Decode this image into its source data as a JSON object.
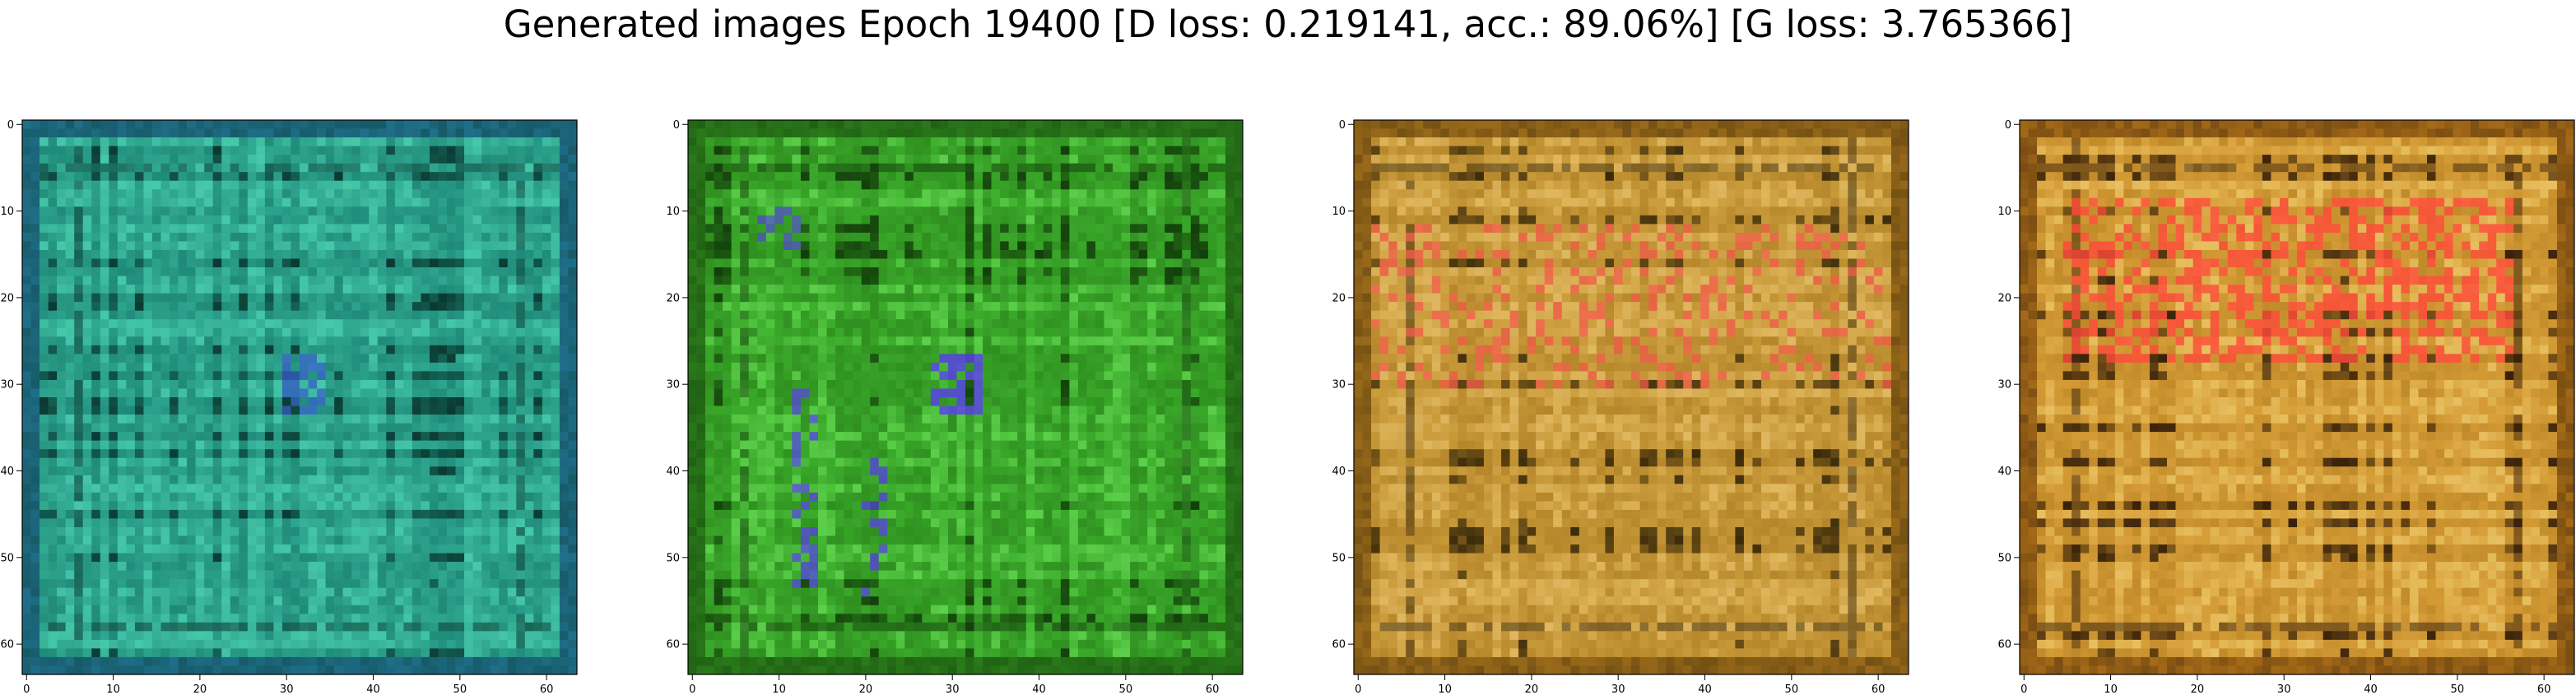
{
  "figure": {
    "title": "Generated images Epoch 19400 [D loss: 0.219141, acc.: 89.06%] [G loss: 3.765366]"
  },
  "panels": [
    {
      "palette": {
        "base": "#1f8a78",
        "mid": "#2fa68f",
        "light": "#46c8ab",
        "dark": "#0a3a32",
        "accent": "#3a5fd0",
        "edge": "#1f6f8a"
      }
    },
    {
      "palette": {
        "base": "#2f8f1f",
        "mid": "#3aa82a",
        "light": "#5cd04a",
        "dark": "#123f0a",
        "accent": "#5a3cf0",
        "edge": "#2a7a1a"
      }
    },
    {
      "palette": {
        "base": "#b5862a",
        "mid": "#c99a3a",
        "light": "#e0b860",
        "dark": "#3a2a0a",
        "accent": "#f25a4a",
        "edge": "#9a6a1a"
      }
    },
    {
      "palette": {
        "base": "#c08a2a",
        "mid": "#d49b35",
        "light": "#e8c060",
        "dark": "#3a220a",
        "accent": "#ff4a3a",
        "edge": "#a56a18"
      }
    }
  ],
  "axes": {
    "xticks": [
      "0",
      "10",
      "20",
      "30",
      "40",
      "50",
      "60"
    ],
    "yticks": [
      "0",
      "10",
      "20",
      "30",
      "40",
      "50",
      "60"
    ]
  }
}
